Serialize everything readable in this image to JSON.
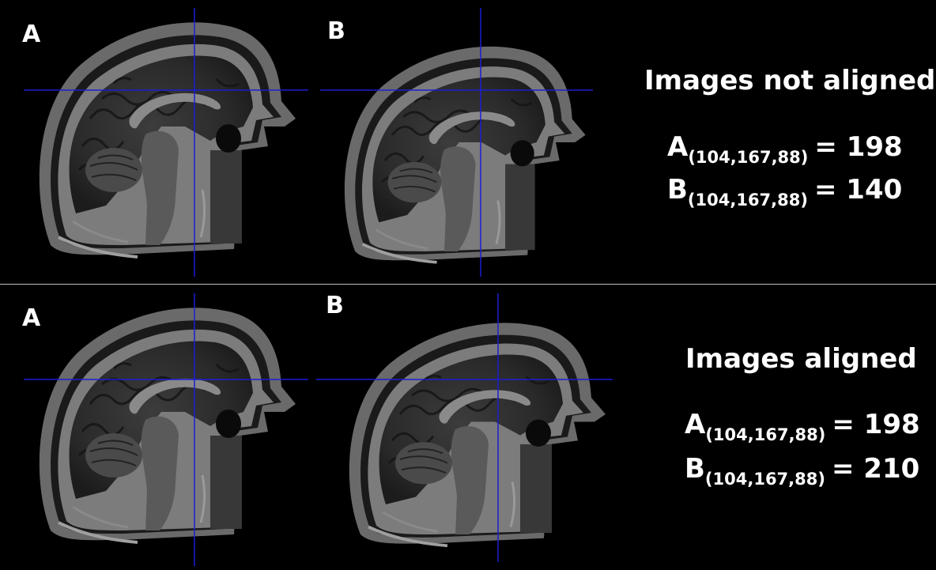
{
  "figure": {
    "background": "#000000",
    "crosshair_color": "#1c1cd6",
    "divider_color": "#bdbdbd"
  },
  "panels": [
    {
      "image_labels": [
        "A",
        "B"
      ],
      "title": "Images not aligned",
      "equations": [
        {
          "name": "A",
          "coords": "(104,167,88)",
          "value": "= 198"
        },
        {
          "name": "B",
          "coords": "(104,167,88)",
          "value": "= 140"
        }
      ]
    },
    {
      "image_labels": [
        "A",
        "B"
      ],
      "title": "Images aligned",
      "equations": [
        {
          "name": "A",
          "coords": "(104,167,88)",
          "value": "= 198"
        },
        {
          "name": "B",
          "coords": "(104,167,88)",
          "value": "= 210"
        }
      ]
    }
  ]
}
